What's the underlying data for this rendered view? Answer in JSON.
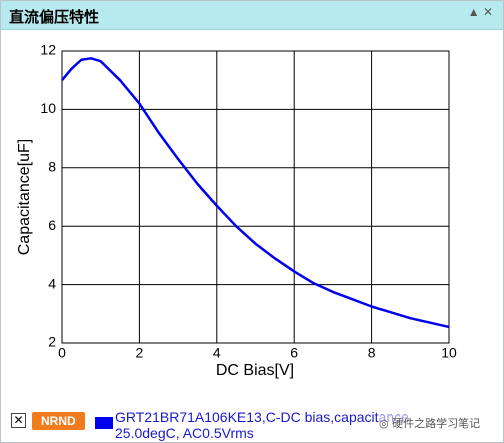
{
  "panel": {
    "title": "直流偏压特性",
    "status_badge": "NRND",
    "watermark": "硬件之路学习笔记"
  },
  "chart_data": {
    "type": "line",
    "x_label": "DC Bias[V]",
    "y_label": "Capacitance[uF]",
    "x": [
      0,
      0.25,
      0.5,
      0.75,
      1,
      1.5,
      2,
      2.5,
      3,
      3.5,
      4,
      4.5,
      5,
      5.5,
      6,
      6.5,
      7,
      7.5,
      8,
      8.5,
      9,
      9.5,
      10
    ],
    "series": [
      {
        "name": "GRT21BR71A106KE13,C-DC bias,capacitance 25.0degC, AC0.5Vrms",
        "color": "#0000ee",
        "values": [
          11.0,
          11.4,
          11.7,
          11.75,
          11.65,
          11.0,
          10.2,
          9.2,
          8.3,
          7.45,
          6.7,
          6.0,
          5.4,
          4.9,
          4.45,
          4.05,
          3.75,
          3.5,
          3.25,
          3.05,
          2.85,
          2.7,
          2.55
        ]
      }
    ],
    "xlim": [
      0,
      10
    ],
    "xticks": [
      0,
      2,
      4,
      6,
      8,
      10
    ],
    "ylim": [
      2,
      12
    ],
    "yticks": [
      2,
      4,
      6,
      8,
      10,
      12
    ],
    "grid": true
  }
}
